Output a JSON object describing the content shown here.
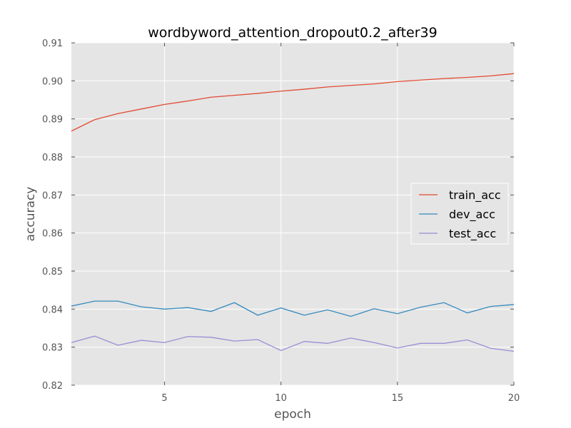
{
  "chart_data": {
    "type": "line",
    "title": "wordbyword_attention_dropout0.2_after39",
    "xlabel": "epoch",
    "ylabel": "accuracy",
    "xlim": [
      1,
      20
    ],
    "ylim": [
      0.82,
      0.91
    ],
    "grid": true,
    "legend_position": "center-right",
    "x_ticks": [
      5,
      10,
      15,
      20
    ],
    "x_tick_labels": [
      "5",
      "10",
      "15",
      "20"
    ],
    "y_ticks": [
      0.82,
      0.83,
      0.84,
      0.85,
      0.86,
      0.87,
      0.88,
      0.89,
      0.9,
      0.91
    ],
    "y_tick_labels": [
      "0.82",
      "0.83",
      "0.84",
      "0.85",
      "0.86",
      "0.87",
      "0.88",
      "0.89",
      "0.90",
      "0.91"
    ],
    "x": [
      1,
      2,
      3,
      4,
      5,
      6,
      7,
      8,
      9,
      10,
      11,
      12,
      13,
      14,
      15,
      16,
      17,
      18,
      19,
      20
    ],
    "series": [
      {
        "name": "train_acc",
        "color": "#E24A33",
        "values": [
          0.8868,
          0.8898,
          0.8914,
          0.8926,
          0.8938,
          0.8947,
          0.8957,
          0.8962,
          0.8967,
          0.8973,
          0.8978,
          0.8984,
          0.8988,
          0.8992,
          0.8998,
          0.9002,
          0.9006,
          0.9009,
          0.9013,
          0.9019
        ]
      },
      {
        "name": "dev_acc",
        "color": "#348ABD",
        "values": [
          0.8408,
          0.8421,
          0.8421,
          0.8406,
          0.84,
          0.8404,
          0.8394,
          0.8417,
          0.8384,
          0.8403,
          0.8384,
          0.8398,
          0.8381,
          0.8401,
          0.8388,
          0.8405,
          0.8417,
          0.839,
          0.8407,
          0.8412
        ]
      },
      {
        "name": "test_acc",
        "color": "#988ED5",
        "values": [
          0.8312,
          0.8329,
          0.8305,
          0.8318,
          0.8312,
          0.8328,
          0.8326,
          0.8316,
          0.832,
          0.8291,
          0.8315,
          0.831,
          0.8324,
          0.8312,
          0.8298,
          0.831,
          0.831,
          0.8319,
          0.8297,
          0.8289
        ]
      }
    ]
  }
}
